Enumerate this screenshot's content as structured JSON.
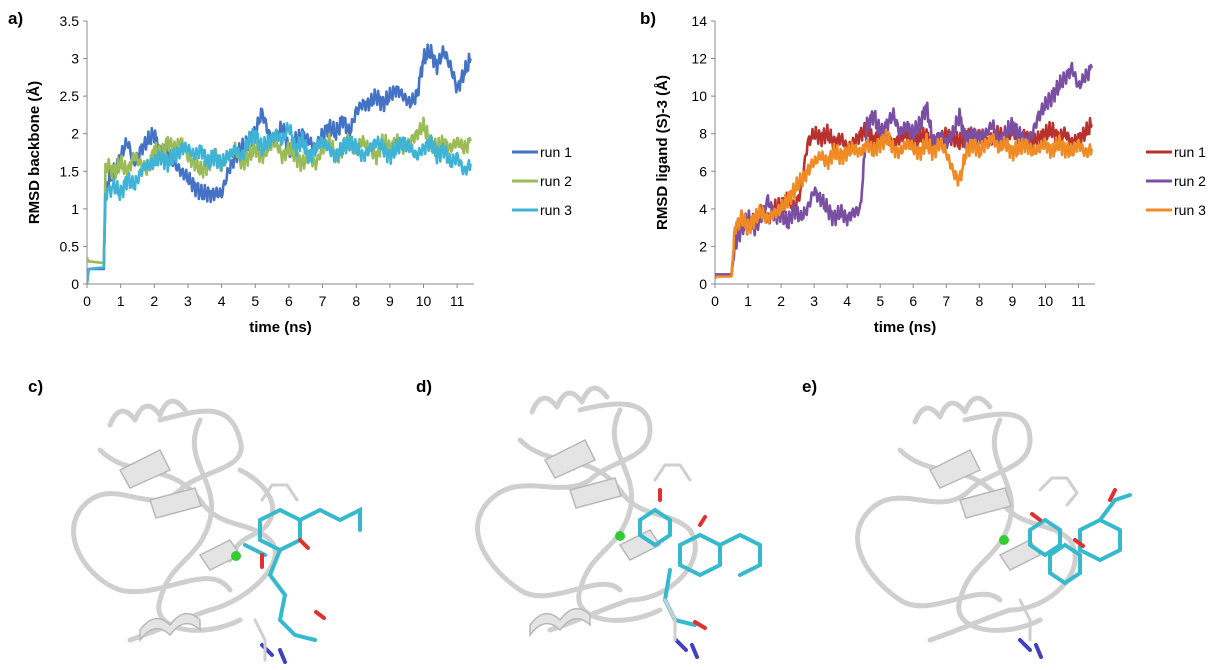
{
  "panels": {
    "a": "a)",
    "b": "b)",
    "c": "c)",
    "d": "d)",
    "e": "e)"
  },
  "structure_images": [
    {
      "panel": "c",
      "content": "protein ribbon with bound ligand (cyan sticks)"
    },
    {
      "panel": "d",
      "content": "protein ribbon with bound ligand (cyan sticks)"
    },
    {
      "panel": "e",
      "content": "protein ribbon with bound ligand (cyan sticks)"
    }
  ],
  "colors": {
    "a_run1": "#4472c4",
    "a_run2": "#9bbb59",
    "a_run3": "#3fb3d6",
    "b_run1": "#b8312f",
    "b_run2": "#7a4fa3",
    "b_run3": "#f08a24",
    "ribbon": "#d7d7d7",
    "ligand": "#35b9cc",
    "metal": "#33cc33"
  },
  "chart_data": [
    {
      "panel": "a)",
      "type": "line",
      "title": "",
      "xlabel": "time (ns)",
      "ylabel": "RMSD backbone (Å)",
      "xlim": [
        0,
        11.5
      ],
      "ylim": [
        0,
        3.5
      ],
      "xticks": [
        "0",
        "1",
        "2",
        "3",
        "4",
        "5",
        "6",
        "7",
        "8",
        "9",
        "10",
        "11"
      ],
      "yticks": [
        "0",
        "0.5",
        "1",
        "1.5",
        "2",
        "2.5",
        "3",
        "3.5"
      ],
      "grid": false,
      "legend": "right",
      "series": [
        {
          "name": "run 1",
          "x": [
            0,
            0.05,
            0.5,
            0.55,
            0.8,
            1,
            1.2,
            1.4,
            1.6,
            1.8,
            2,
            2.2,
            2.4,
            2.6,
            2.8,
            3,
            3.2,
            3.4,
            3.6,
            3.8,
            4,
            4.2,
            4.4,
            4.6,
            4.8,
            5,
            5.2,
            5.4,
            5.6,
            5.8,
            6,
            6.2,
            6.4,
            6.6,
            6.8,
            7,
            7.2,
            7.4,
            7.6,
            7.8,
            8,
            8.2,
            8.4,
            8.6,
            8.8,
            9,
            9.2,
            9.4,
            9.6,
            9.8,
            10,
            10.2,
            10.4,
            10.6,
            10.8,
            11,
            11.2,
            11.4
          ],
          "y": [
            0,
            0.2,
            0.2,
            1.3,
            1.5,
            1.7,
            1.9,
            1.6,
            1.8,
            1.9,
            2.0,
            1.7,
            1.8,
            1.6,
            1.5,
            1.4,
            1.3,
            1.2,
            1.2,
            1.2,
            1.2,
            1.5,
            1.7,
            1.8,
            1.9,
            2.0,
            2.3,
            2.0,
            1.9,
            2.1,
            1.8,
            1.9,
            2.0,
            1.9,
            1.8,
            2.0,
            2.1,
            2.0,
            2.2,
            2.0,
            2.3,
            2.4,
            2.4,
            2.5,
            2.4,
            2.5,
            2.6,
            2.5,
            2.4,
            2.5,
            3.0,
            3.1,
            2.9,
            3.1,
            2.9,
            2.6,
            2.8,
            3.0
          ]
        },
        {
          "name": "run 2",
          "x": [
            0,
            0.05,
            0.5,
            0.55,
            0.8,
            1,
            1.2,
            1.4,
            1.6,
            1.8,
            2,
            2.2,
            2.4,
            2.6,
            2.8,
            3,
            3.2,
            3.4,
            3.6,
            3.8,
            4,
            4.2,
            4.4,
            4.6,
            4.8,
            5,
            5.2,
            5.4,
            5.6,
            5.8,
            6,
            6.2,
            6.4,
            6.6,
            6.8,
            7,
            7.2,
            7.4,
            7.6,
            7.8,
            8,
            8.2,
            8.4,
            8.6,
            8.8,
            9,
            9.2,
            9.4,
            9.6,
            9.8,
            10,
            10.2,
            10.4,
            10.6,
            10.8,
            11,
            11.2,
            11.4
          ],
          "y": [
            0.35,
            0.3,
            0.28,
            1.6,
            1.5,
            1.6,
            1.5,
            1.7,
            1.6,
            1.5,
            1.8,
            1.7,
            1.9,
            1.8,
            1.9,
            1.7,
            1.6,
            1.5,
            1.6,
            1.7,
            1.6,
            1.7,
            1.8,
            1.6,
            1.7,
            1.8,
            1.7,
            1.8,
            1.9,
            1.7,
            1.8,
            1.7,
            1.6,
            1.7,
            1.6,
            1.8,
            1.9,
            1.7,
            1.8,
            1.9,
            1.8,
            1.9,
            1.8,
            1.7,
            1.9,
            1.8,
            1.9,
            1.8,
            1.9,
            2.0,
            2.1,
            1.9,
            1.8,
            1.9,
            1.8,
            1.9,
            1.8,
            1.9
          ]
        },
        {
          "name": "run 3",
          "x": [
            0,
            0.05,
            0.5,
            0.55,
            0.8,
            1,
            1.2,
            1.4,
            1.6,
            1.8,
            2,
            2.2,
            2.4,
            2.6,
            2.8,
            3,
            3.2,
            3.4,
            3.6,
            3.8,
            4,
            4.2,
            4.4,
            4.6,
            4.8,
            5,
            5.2,
            5.4,
            5.6,
            5.8,
            6,
            6.2,
            6.4,
            6.6,
            6.8,
            7,
            7.2,
            7.4,
            7.6,
            7.8,
            8,
            8.2,
            8.4,
            8.6,
            8.8,
            9,
            9.2,
            9.4,
            9.6,
            9.8,
            10,
            10.2,
            10.4,
            10.6,
            10.8,
            11,
            11.2,
            11.4
          ],
          "y": [
            0,
            0.2,
            0.22,
            1.2,
            1.3,
            1.2,
            1.4,
            1.3,
            1.5,
            1.6,
            1.6,
            1.7,
            1.6,
            1.7,
            1.8,
            1.8,
            1.7,
            1.8,
            1.6,
            1.7,
            1.6,
            1.7,
            1.8,
            1.7,
            1.9,
            2.0,
            1.8,
            1.9,
            2.0,
            1.9,
            2.1,
            1.8,
            1.9,
            1.7,
            1.8,
            1.9,
            1.8,
            1.7,
            1.8,
            1.9,
            1.8,
            1.7,
            1.8,
            1.9,
            1.8,
            1.7,
            1.8,
            1.9,
            1.8,
            1.7,
            1.8,
            1.9,
            1.7,
            1.8,
            1.6,
            1.7,
            1.5,
            1.6
          ]
        }
      ]
    },
    {
      "panel": "b)",
      "type": "line",
      "title": "",
      "xlabel": "time (ns)",
      "ylabel": "RMSD ligand (S)-3 (Å)",
      "xlim": [
        0,
        11.5
      ],
      "ylim": [
        0,
        14
      ],
      "xticks": [
        "0",
        "1",
        "2",
        "3",
        "4",
        "5",
        "6",
        "7",
        "8",
        "9",
        "10",
        "11"
      ],
      "yticks": [
        "0",
        "2",
        "4",
        "6",
        "8",
        "10",
        "12",
        "14"
      ],
      "grid": false,
      "legend": "right",
      "series": [
        {
          "name": "run 1",
          "x": [
            0,
            0.05,
            0.5,
            0.6,
            0.8,
            1,
            1.2,
            1.4,
            1.6,
            1.8,
            2,
            2.2,
            2.4,
            2.6,
            2.8,
            3,
            3.2,
            3.4,
            3.6,
            3.8,
            4,
            4.2,
            4.4,
            4.6,
            4.8,
            5,
            5.2,
            5.4,
            5.6,
            5.8,
            6,
            6.2,
            6.4,
            6.6,
            6.8,
            7,
            7.2,
            7.4,
            7.6,
            7.8,
            8,
            8.2,
            8.4,
            8.6,
            8.8,
            9,
            9.2,
            9.4,
            9.6,
            9.8,
            10,
            10.2,
            10.4,
            10.6,
            10.8,
            11,
            11.2,
            11.4
          ],
          "y": [
            0.5,
            0.5,
            0.5,
            2.5,
            3.5,
            3.0,
            3.5,
            4.0,
            3.5,
            4.0,
            4.2,
            4.5,
            4.0,
            5.0,
            7.5,
            8.0,
            7.8,
            8.0,
            7.5,
            7.8,
            7.2,
            7.5,
            8.0,
            8.2,
            7.6,
            8.0,
            7.8,
            7.5,
            7.8,
            8.0,
            7.5,
            7.8,
            8.0,
            7.5,
            7.7,
            8.0,
            7.8,
            7.5,
            8.0,
            7.8,
            8.0,
            7.6,
            7.8,
            8.0,
            7.7,
            8.2,
            7.8,
            8.0,
            7.5,
            7.8,
            8.0,
            8.2,
            7.8,
            8.0,
            7.5,
            7.8,
            8.0,
            8.5
          ]
        },
        {
          "name": "run 2",
          "x": [
            0,
            0.05,
            0.5,
            0.6,
            0.8,
            1,
            1.2,
            1.4,
            1.6,
            1.8,
            2,
            2.2,
            2.4,
            2.6,
            2.8,
            3,
            3.2,
            3.4,
            3.6,
            3.8,
            4,
            4.2,
            4.4,
            4.6,
            4.8,
            5,
            5.2,
            5.4,
            5.6,
            5.8,
            6,
            6.2,
            6.4,
            6.6,
            6.8,
            7,
            7.2,
            7.4,
            7.6,
            7.8,
            8,
            8.2,
            8.4,
            8.6,
            8.8,
            9,
            9.2,
            9.4,
            9.6,
            9.8,
            10,
            10.2,
            10.4,
            10.6,
            10.8,
            11,
            11.2,
            11.4
          ],
          "y": [
            0.5,
            0.5,
            0.5,
            2.0,
            3.0,
            3.5,
            3.0,
            3.5,
            4.5,
            3.5,
            3.8,
            3.2,
            4.0,
            3.5,
            4.0,
            5.0,
            4.5,
            4.0,
            3.5,
            3.8,
            3.5,
            3.8,
            4.0,
            8.5,
            9.0,
            8.0,
            8.5,
            9.0,
            8.0,
            8.5,
            8.0,
            8.5,
            9.5,
            7.5,
            8.0,
            7.5,
            8.0,
            9.0,
            7.5,
            8.0,
            7.8,
            8.0,
            8.5,
            7.5,
            8.0,
            8.5,
            8.0,
            7.5,
            8.0,
            9.0,
            9.5,
            10.0,
            10.5,
            11.0,
            11.5,
            10.5,
            11.0,
            11.5
          ]
        },
        {
          "name": "run 3",
          "x": [
            0,
            0.05,
            0.5,
            0.6,
            0.8,
            1,
            1.2,
            1.4,
            1.6,
            1.8,
            2,
            2.2,
            2.4,
            2.6,
            2.8,
            3,
            3.2,
            3.4,
            3.6,
            3.8,
            4,
            4.2,
            4.4,
            4.6,
            4.8,
            5,
            5.2,
            5.4,
            5.6,
            5.8,
            6,
            6.2,
            6.4,
            6.6,
            6.8,
            7,
            7.2,
            7.4,
            7.6,
            7.8,
            8,
            8.2,
            8.4,
            8.6,
            8.8,
            9,
            9.2,
            9.4,
            9.6,
            9.8,
            10,
            10.2,
            10.4,
            10.6,
            10.8,
            11,
            11.2,
            11.4
          ],
          "y": [
            0.3,
            0.4,
            0.4,
            3.0,
            3.5,
            3.0,
            3.5,
            3.8,
            3.5,
            3.8,
            4.0,
            4.5,
            5.0,
            5.5,
            6.0,
            6.5,
            6.8,
            6.5,
            7.0,
            6.8,
            7.0,
            7.2,
            7.0,
            7.5,
            7.0,
            7.5,
            7.8,
            7.2,
            7.0,
            7.5,
            7.2,
            7.0,
            7.5,
            7.0,
            7.5,
            7.0,
            6.0,
            5.5,
            7.0,
            7.5,
            7.0,
            7.5,
            7.8,
            7.2,
            7.5,
            7.0,
            7.2,
            7.5,
            7.0,
            7.2,
            7.5,
            7.0,
            7.5,
            7.2,
            7.0,
            7.5,
            7.0,
            7.2
          ]
        }
      ]
    }
  ]
}
